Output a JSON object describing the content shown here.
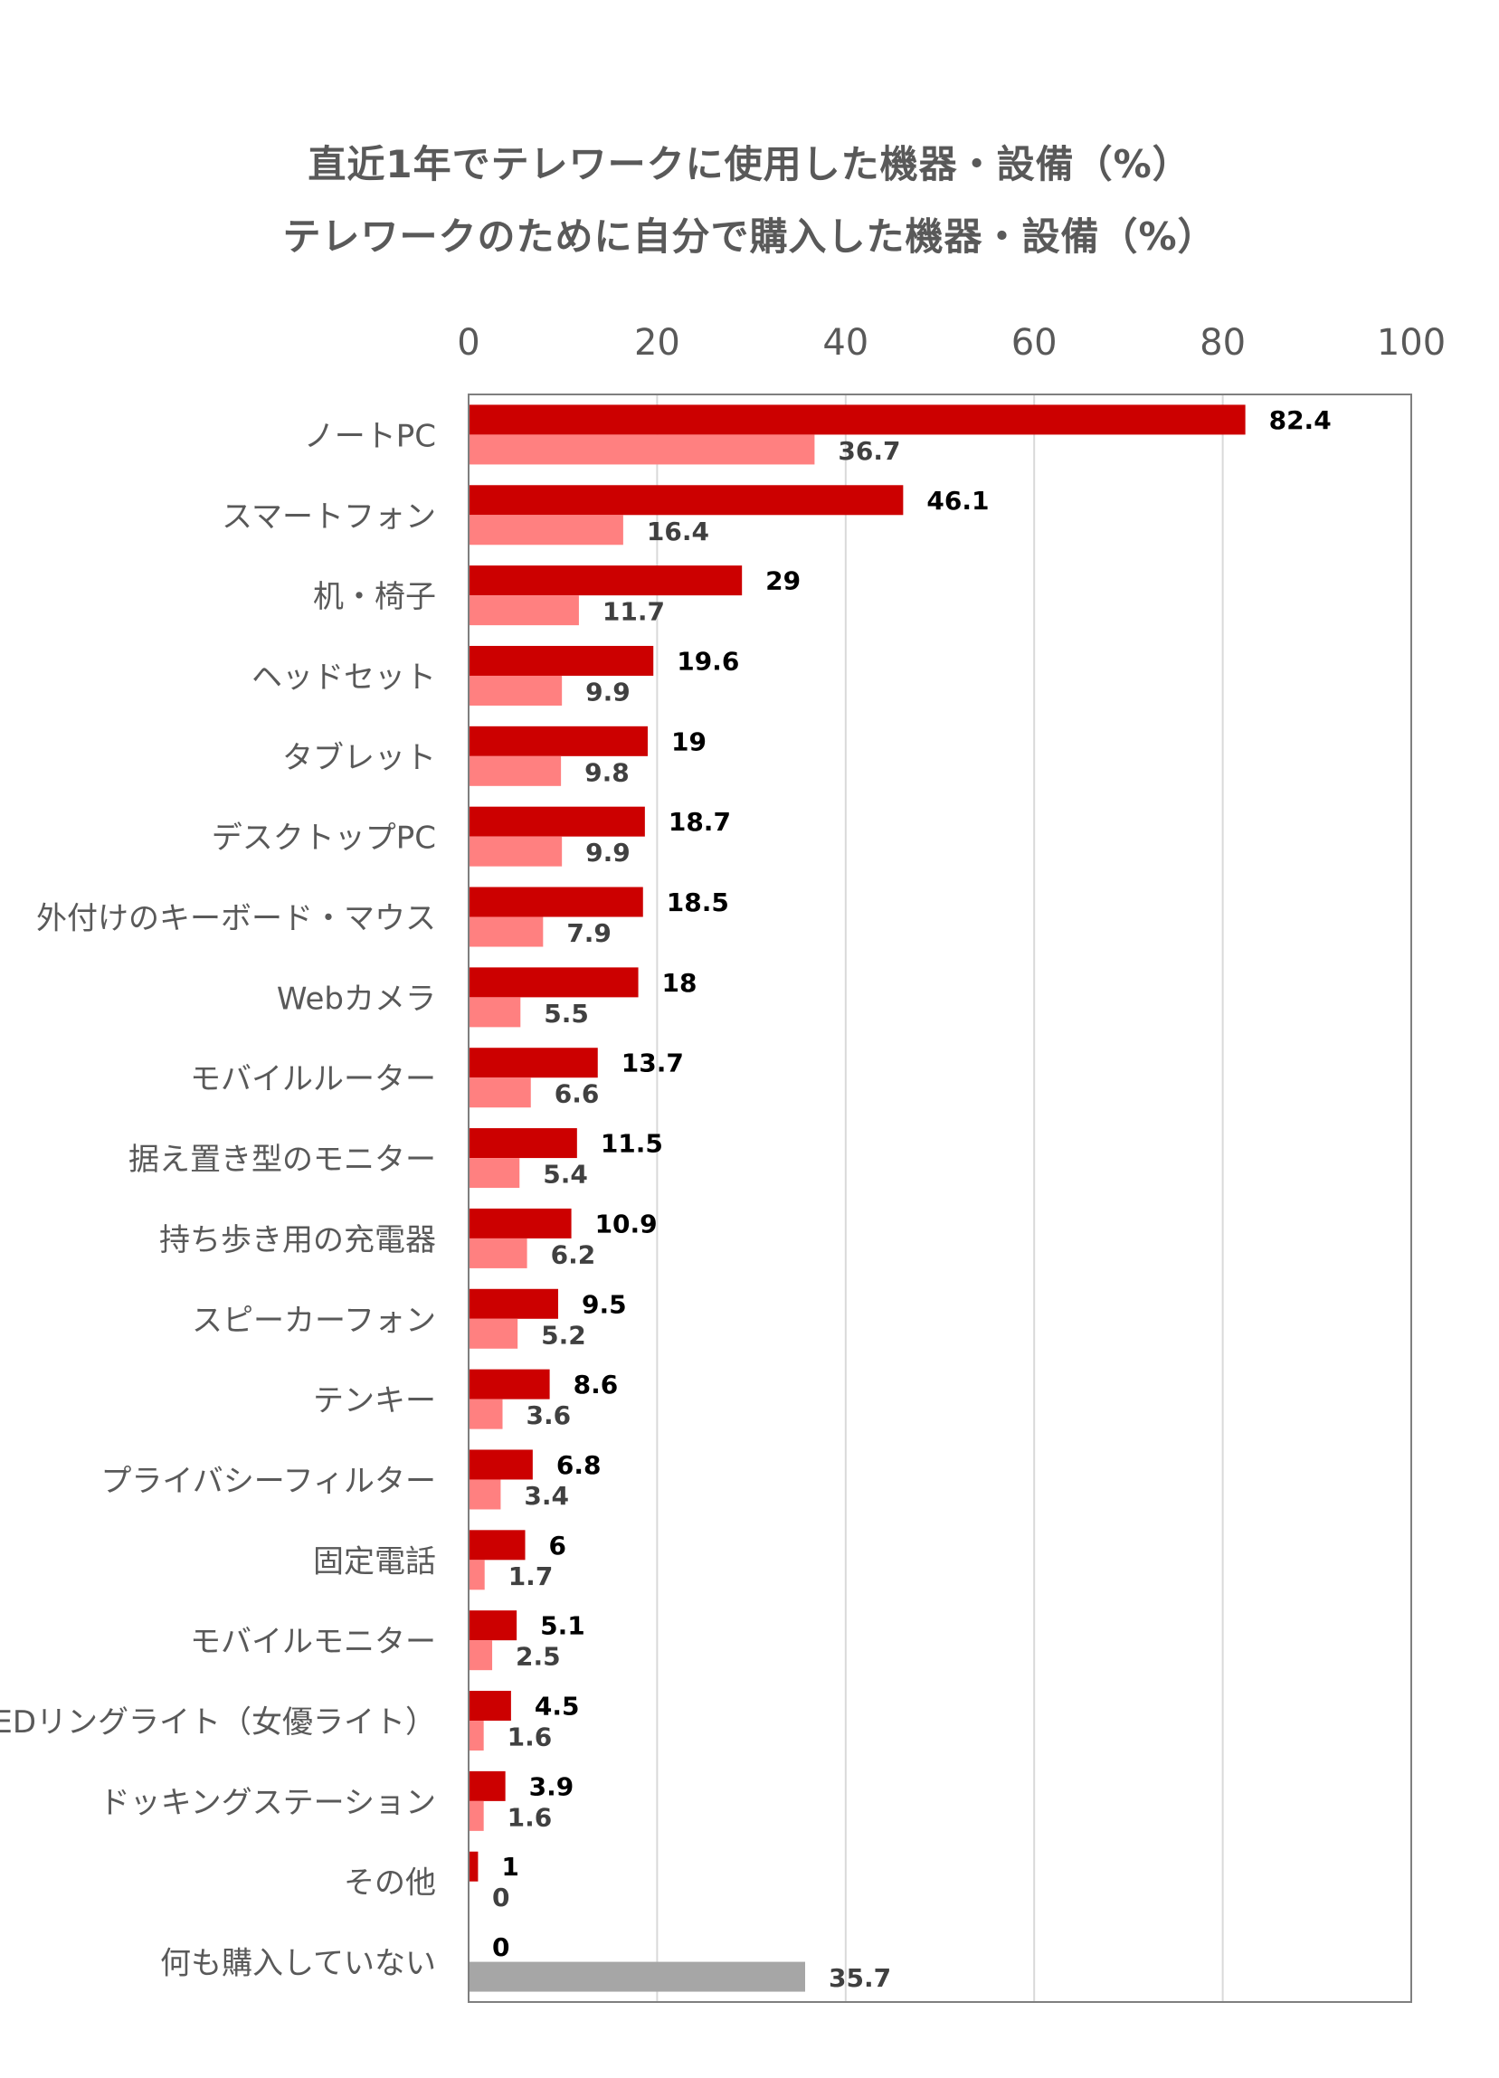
{
  "chart_data": {
    "type": "bar",
    "orientation": "horizontal",
    "title_lines": [
      "直近1年でテレワークに使用した機器・設備（%）",
      "テレワークのために自分で購入した機器・設備（%）"
    ],
    "xlim": [
      0,
      100
    ],
    "x_ticks": [
      "0",
      "20",
      "40",
      "60",
      "80",
      "100"
    ],
    "x_axis_position": "top",
    "grid": true,
    "legend": "none",
    "categories": [
      "ノートPC",
      "スマートフォン",
      "机・椅子",
      "ヘッドセット",
      "タブレット",
      "デスクトップPC",
      "外付けのキーボード・マウス",
      "Webカメラ",
      "モバイルルーター",
      "据え置き型のモニター",
      "持ち歩き用の充電器",
      "スピーカーフォン",
      "テンキー",
      "プライバシーフィルター",
      "固定電話",
      "モバイルモニター",
      "LEDリングライト（女優ライト）",
      "ドッキングステーション",
      "その他",
      "何も購入していない"
    ],
    "series": [
      {
        "color": "#cc0000",
        "values": [
          82.4,
          46.1,
          29,
          19.6,
          19,
          18.7,
          18.5,
          18,
          13.7,
          11.5,
          10.9,
          9.5,
          8.6,
          6.8,
          6,
          5.1,
          4.5,
          3.9,
          1,
          0
        ],
        "labels": [
          "82.4",
          "46.1",
          "29",
          "19.6",
          "19",
          "18.7",
          "18.5",
          "18",
          "13.7",
          "11.5",
          "10.9",
          "9.5",
          "8.6",
          "6.8",
          "6",
          "5.1",
          "4.5",
          "3.9",
          "1",
          "0"
        ]
      },
      {
        "color": "#ff8080",
        "special_last_color": "#a6a6a6",
        "values": [
          36.7,
          16.4,
          11.7,
          9.9,
          9.8,
          9.9,
          7.9,
          5.5,
          6.6,
          5.4,
          6.2,
          5.2,
          3.6,
          3.4,
          1.7,
          2.5,
          1.6,
          1.6,
          0,
          35.7
        ],
        "labels": [
          "36.7",
          "16.4",
          "11.7",
          "9.9",
          "9.8",
          "9.9",
          "7.9",
          "5.5",
          "6.6",
          "5.4",
          "6.2",
          "5.2",
          "3.6",
          "3.4",
          "1.7",
          "2.5",
          "1.6",
          "1.6",
          "0",
          "35.7"
        ]
      }
    ]
  }
}
